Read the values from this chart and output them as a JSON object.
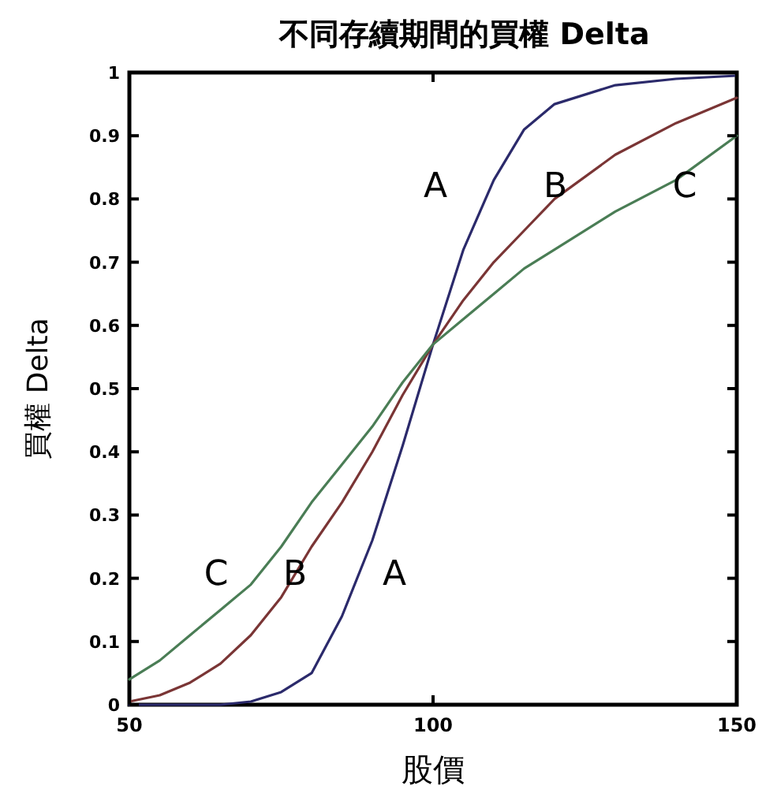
{
  "chart_data": {
    "type": "line",
    "title": "不同存續期間的買權 Delta",
    "xlabel": "股價",
    "ylabel": "買權 Delta",
    "x": [
      50,
      55,
      60,
      65,
      70,
      75,
      80,
      85,
      90,
      95,
      100,
      105,
      110,
      115,
      120,
      130,
      140,
      150
    ],
    "series": [
      {
        "color": "#2b2a6b",
        "values": [
          0,
          0,
          0,
          0,
          0.005,
          0.02,
          0.05,
          0.14,
          0.26,
          0.41,
          0.57,
          0.72,
          0.83,
          0.91,
          0.95,
          0.98,
          0.99,
          0.995
        ]
      },
      {
        "color": "#7a3535",
        "values": [
          0.005,
          0.015,
          0.035,
          0.065,
          0.11,
          0.17,
          0.25,
          0.32,
          0.4,
          0.49,
          0.57,
          0.64,
          0.7,
          0.75,
          0.8,
          0.87,
          0.92,
          0.96
        ]
      },
      {
        "color": "#4a7d55",
        "values": [
          0.04,
          0.07,
          0.11,
          0.15,
          0.19,
          0.25,
          0.32,
          0.38,
          0.44,
          0.51,
          0.57,
          0.61,
          0.65,
          0.69,
          0.72,
          0.78,
          0.83,
          0.9
        ]
      }
    ],
    "annotations": [
      "A",
      "B",
      "C",
      "C",
      "B",
      "A"
    ],
    "xlim": [
      50,
      150
    ],
    "xticks": [
      50,
      100,
      150
    ],
    "ylim": [
      0,
      1
    ],
    "yticks": [
      0,
      0.1,
      0.2,
      0.3,
      0.4,
      0.5,
      0.6,
      0.7,
      0.8,
      0.9,
      1
    ],
    "grid": false,
    "marker": "none",
    "line_style": "solid"
  }
}
